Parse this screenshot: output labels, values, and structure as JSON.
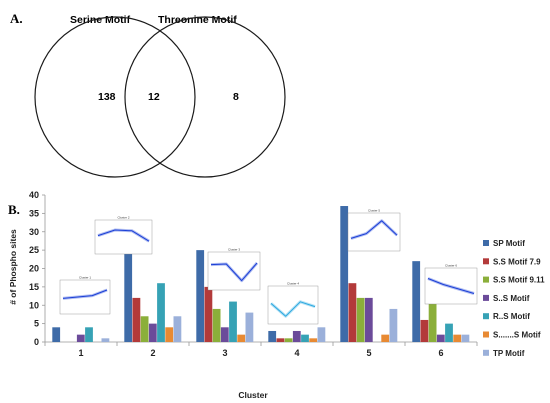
{
  "panel_a_label": "A.",
  "panel_b_label": "B.",
  "venn": {
    "left_label": "Serine Motif",
    "right_label": "Threonine Motif",
    "left_only": "138",
    "overlap": "12",
    "right_only": "8"
  },
  "chart_data": {
    "type": "bar",
    "xlabel": "Cluster",
    "ylabel": "# of Phospho sites",
    "ylim": [
      0,
      40
    ],
    "yticks": [
      0,
      5,
      10,
      15,
      20,
      25,
      30,
      35,
      40
    ],
    "categories": [
      "1",
      "2",
      "3",
      "4",
      "5",
      "6"
    ],
    "legend_position": "right",
    "series": [
      {
        "name": "SP Motif",
        "color": "#3E6BA8",
        "values": [
          4,
          25,
          25,
          3,
          37,
          22
        ]
      },
      {
        "name": "S.S Motif 7.9",
        "color": "#B33A3A",
        "values": [
          0,
          12,
          15,
          1,
          16,
          6
        ]
      },
      {
        "name": "S.S Motif 9.11",
        "color": "#8BAF3A",
        "values": [
          0,
          7,
          9,
          1,
          12,
          11
        ]
      },
      {
        "name": "S..S Motif",
        "color": "#6B4B9A",
        "values": [
          2,
          5,
          4,
          3,
          12,
          2
        ]
      },
      {
        "name": "R..S Motif",
        "color": "#36A2B5",
        "values": [
          4,
          16,
          11,
          2,
          0,
          5
        ]
      },
      {
        "name": "S.......S Motif",
        "color": "#E88A33",
        "values": [
          0,
          4,
          2,
          1,
          2,
          2
        ]
      },
      {
        "name": "TP Motif",
        "color": "#9BB0DA",
        "values": [
          1,
          7,
          8,
          4,
          9,
          2
        ]
      }
    ],
    "insets": [
      {
        "title": "Cluster 1",
        "cluster": "1",
        "trend": [
          0.45,
          0.5,
          0.55,
          0.75
        ]
      },
      {
        "title": "Cluster 2",
        "cluster": "2",
        "trend": [
          0.55,
          0.75,
          0.72,
          0.35
        ]
      },
      {
        "title": "Cluster 3",
        "cluster": "3",
        "trend": [
          0.7,
          0.72,
          0.2,
          0.75
        ]
      },
      {
        "title": "Cluster 4",
        "cluster": "4",
        "trend": [
          0.55,
          0.15,
          0.6,
          0.45
        ]
      },
      {
        "title": "Cluster 5",
        "cluster": "5",
        "trend": [
          0.3,
          0.45,
          0.85,
          0.4
        ]
      },
      {
        "title": "Cluster 6",
        "cluster": "6",
        "trend": [
          0.75,
          0.55,
          0.4,
          0.25
        ]
      }
    ]
  }
}
